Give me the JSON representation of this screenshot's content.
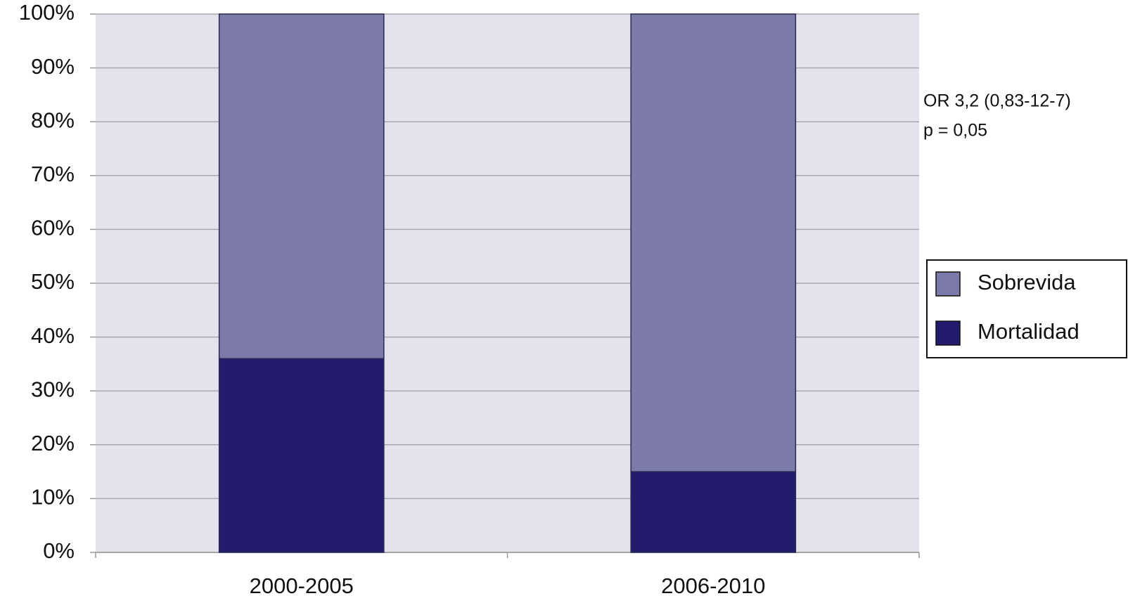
{
  "chart_data": {
    "type": "stacked_bar",
    "categories": [
      "2000-2005",
      "2006-2010"
    ],
    "series": [
      {
        "name": "Mortalidad",
        "color": "#231c6e",
        "values": [
          36,
          15
        ]
      },
      {
        "name": "Sobrevida",
        "color": "#7b7aa8",
        "values": [
          64,
          85
        ]
      }
    ],
    "ylim": [
      0,
      100
    ],
    "yticks": [
      {
        "value": 0,
        "label": "0%"
      },
      {
        "value": 10,
        "label": "10%"
      },
      {
        "value": 20,
        "label": "20%"
      },
      {
        "value": 30,
        "label": "30%"
      },
      {
        "value": 40,
        "label": "40%"
      },
      {
        "value": 50,
        "label": "50%"
      },
      {
        "value": 60,
        "label": "60%"
      },
      {
        "value": 70,
        "label": "70%"
      },
      {
        "value": 80,
        "label": "80%"
      },
      {
        "value": 90,
        "label": "90%"
      },
      {
        "value": 100,
        "label": "100%"
      }
    ],
    "grid": true,
    "legend_position": "right",
    "annotations": [
      "OR 3,2 (0,83-12-7)",
      "p = 0,05"
    ]
  }
}
